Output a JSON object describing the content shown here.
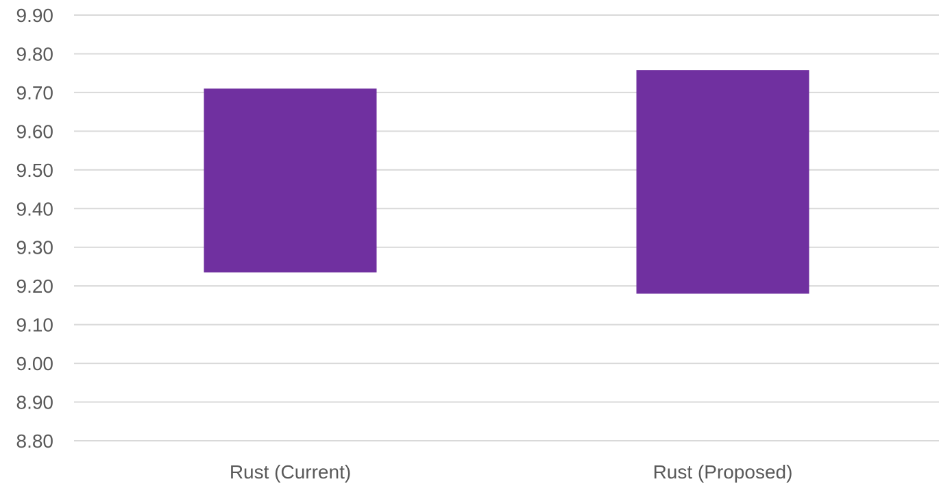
{
  "chart_data": {
    "type": "bar",
    "subtype": "floating-range",
    "categories": [
      "Rust (Current)",
      "Rust (Proposed)"
    ],
    "ranges": [
      [
        9.235,
        9.71
      ],
      [
        9.18,
        9.758
      ]
    ],
    "ylim": [
      8.8,
      9.9
    ],
    "yticks": [
      "8.80",
      "8.90",
      "9.00",
      "9.10",
      "9.20",
      "9.30",
      "9.40",
      "9.50",
      "9.60",
      "9.70",
      "9.80",
      "9.90"
    ],
    "grid": true,
    "legend": "none",
    "bar_color": "#7030a0",
    "grid_color": "#d9d9d9",
    "label_color": "#595959"
  }
}
